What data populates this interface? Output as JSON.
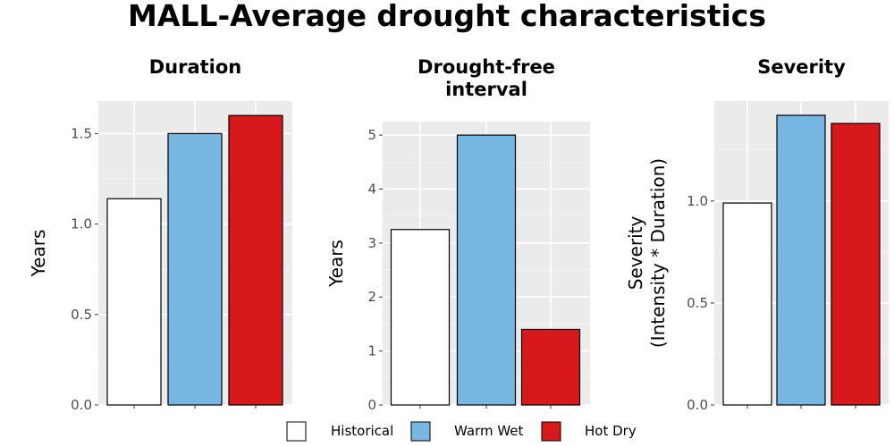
{
  "title": "MALL-Average drought characteristics",
  "legend": {
    "items": [
      {
        "label": "Historical",
        "color": "#ffffff"
      },
      {
        "label": "Warm Wet",
        "color": "#77b7e2"
      },
      {
        "label": "Hot Dry",
        "color": "#d7191c"
      }
    ]
  },
  "chart_data": [
    {
      "type": "bar",
      "title": "Duration",
      "ylabel": "Years",
      "categories": [
        "Historical",
        "Warm Wet",
        "Hot Dry"
      ],
      "values": [
        1.14,
        1.5,
        1.6
      ],
      "ylim": [
        0,
        1.68
      ],
      "yticks": [
        0.0,
        0.5,
        1.0,
        1.5
      ],
      "ytick_labels": [
        "0.0",
        "0.5",
        "1.0",
        "1.5"
      ],
      "grid": true
    },
    {
      "type": "bar",
      "title": "Drought-free interval",
      "title_lines": [
        "Drought-free",
        "interval"
      ],
      "ylabel": "Years",
      "categories": [
        "Historical",
        "Warm Wet",
        "Hot Dry"
      ],
      "values": [
        3.25,
        5.0,
        1.4
      ],
      "ylim": [
        0,
        5.25
      ],
      "yticks": [
        0,
        1,
        2,
        3,
        4,
        5
      ],
      "ytick_labels": [
        "0",
        "1",
        "2",
        "3",
        "4",
        "5"
      ],
      "grid": true
    },
    {
      "type": "bar",
      "title": "Severity",
      "ylabel": "Severity (Intensity * Duration)",
      "ylabel_lines": [
        "Severity",
        "(Intensity * Duration)"
      ],
      "categories": [
        "Historical",
        "Warm Wet",
        "Hot Dry"
      ],
      "values": [
        0.99,
        1.42,
        1.38
      ],
      "ylim": [
        0,
        1.49
      ],
      "yticks": [
        0.0,
        0.5,
        1.0
      ],
      "ytick_labels": [
        "0.0",
        "0.5",
        "1.0"
      ],
      "grid": true
    }
  ]
}
